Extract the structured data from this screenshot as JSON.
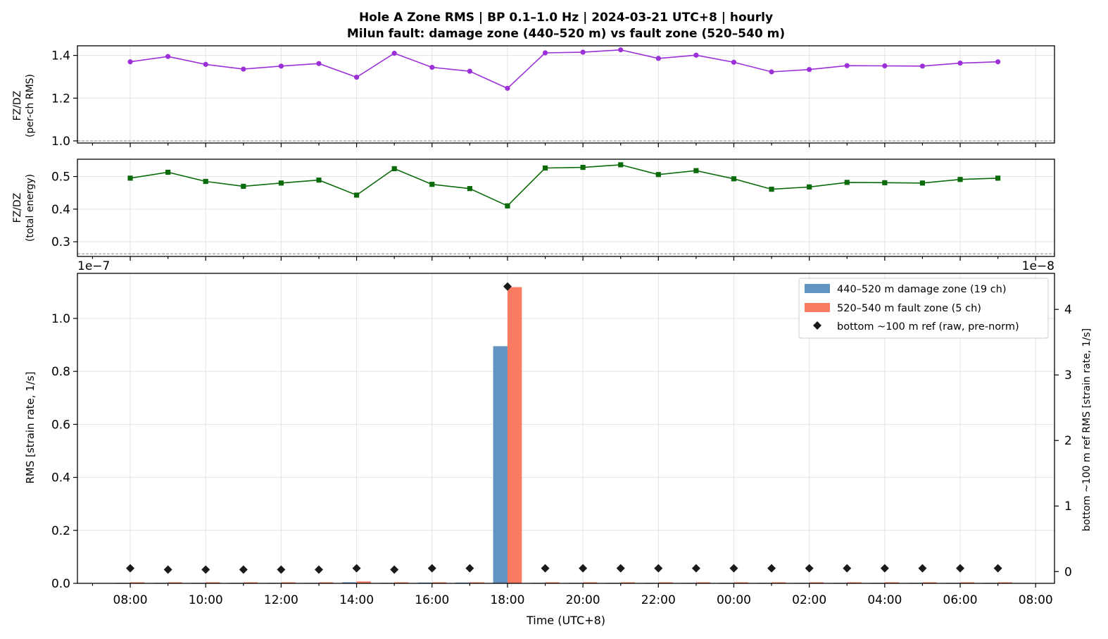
{
  "chart_data": [
    {
      "type": "line",
      "title": "Hole A Zone RMS  |  BP 0.1–1.0 Hz  |  2024-03-21 UTC+8  |  hourly",
      "subtitle": "Milun fault: damage zone (440–520 m) vs fault zone (520–540 m)",
      "ylabel": "FZ/DZ",
      "ylabel2": "(per-ch RMS)",
      "ylim": [
        0.99,
        1.445
      ],
      "yticks": [
        1.0,
        1.2,
        1.4
      ],
      "ytick_labels": [
        "1.0",
        "1.2",
        "1.4"
      ],
      "reference_line": 1.0,
      "color": "#9b30d9",
      "marker": "circle",
      "x_hours": [
        8,
        9,
        10,
        11,
        12,
        13,
        14,
        15,
        16,
        17,
        18,
        19,
        20,
        21,
        22,
        23,
        24,
        25,
        26,
        27,
        28,
        29,
        30,
        31
      ],
      "values": [
        1.37,
        1.395,
        1.358,
        1.336,
        1.35,
        1.362,
        1.298,
        1.41,
        1.344,
        1.326,
        1.246,
        1.412,
        1.415,
        1.426,
        1.386,
        1.401,
        1.368,
        1.323,
        1.334,
        1.352,
        1.351,
        1.35,
        1.364,
        1.37
      ]
    },
    {
      "type": "line",
      "ylabel": "FZ/DZ",
      "ylabel2": "(total energy)",
      "ylim": [
        0.255,
        0.553
      ],
      "yticks": [
        0.3,
        0.4,
        0.5
      ],
      "ytick_labels": [
        "0.3",
        "0.4",
        "0.5"
      ],
      "reference_line": 0.263,
      "color": "#0b6b0b",
      "marker": "square",
      "x_hours": [
        8,
        9,
        10,
        11,
        12,
        13,
        14,
        15,
        16,
        17,
        18,
        19,
        20,
        21,
        22,
        23,
        24,
        25,
        26,
        27,
        28,
        29,
        30,
        31
      ],
      "values": [
        0.495,
        0.513,
        0.485,
        0.47,
        0.48,
        0.489,
        0.443,
        0.524,
        0.476,
        0.463,
        0.41,
        0.526,
        0.528,
        0.536,
        0.506,
        0.518,
        0.493,
        0.461,
        0.468,
        0.482,
        0.481,
        0.48,
        0.491,
        0.495
      ]
    },
    {
      "type": "bar",
      "ylabel": "RMS  [strain rate, 1/s]",
      "ylabel_right": "bottom ~100 m ref RMS  [strain rate, 1/s]",
      "xlabel": "Time (UTC+8)",
      "ylim": [
        0,
        1.17
      ],
      "yticks": [
        0.0,
        0.2,
        0.4,
        0.6,
        0.8,
        1.0
      ],
      "ytick_labels": [
        "0.0",
        "0.2",
        "0.4",
        "0.6",
        "0.8",
        "1.0"
      ],
      "offset_left": "1e−7",
      "ylim_right": [
        -0.18,
        4.55
      ],
      "yticks_right": [
        0,
        1,
        2,
        3,
        4
      ],
      "ytick_labels_right": [
        "0",
        "1",
        "2",
        "3",
        "4"
      ],
      "offset_right": "1e−8",
      "xlim_hours": [
        6.6,
        32.5
      ],
      "xticks_hours": [
        8,
        10,
        12,
        14,
        16,
        18,
        20,
        22,
        24,
        26,
        28,
        30,
        32
      ],
      "xtick_labels": [
        "08:00",
        "10:00",
        "12:00",
        "14:00",
        "16:00",
        "18:00",
        "20:00",
        "22:00",
        "00:00",
        "02:00",
        "04:00",
        "06:00",
        "08:00"
      ],
      "x_hours": [
        8,
        9,
        10,
        11,
        12,
        13,
        14,
        15,
        16,
        17,
        18,
        19,
        20,
        21,
        22,
        23,
        24,
        25,
        26,
        27,
        28,
        29,
        30,
        31
      ],
      "series": [
        {
          "name": "440–520 m  damage zone (19 ch)",
          "color": "#6294c2",
          "axis": "left",
          "values": [
            0.002,
            0.002,
            0.002,
            0.002,
            0.002,
            0.002,
            0.004,
            0.002,
            0.003,
            0.003,
            0.895,
            0.002,
            0.002,
            0.002,
            0.002,
            0.002,
            0.002,
            0.002,
            0.002,
            0.002,
            0.002,
            0.002,
            0.002,
            0.002
          ]
        },
        {
          "name": "520–540 m  fault zone (5 ch)",
          "color": "#fa7a62",
          "axis": "left",
          "values": [
            0.004,
            0.004,
            0.004,
            0.004,
            0.004,
            0.004,
            0.007,
            0.004,
            0.004,
            0.004,
            1.118,
            0.004,
            0.004,
            0.004,
            0.004,
            0.004,
            0.004,
            0.004,
            0.004,
            0.004,
            0.004,
            0.004,
            0.004,
            0.004
          ]
        },
        {
          "name": "bottom ~100 m ref (raw, pre-norm)",
          "color": "#1a1a1a",
          "axis": "right",
          "marker": "diamond",
          "values": [
            0.05,
            0.03,
            0.03,
            0.03,
            0.03,
            0.03,
            0.05,
            0.03,
            0.05,
            0.05,
            4.35,
            0.05,
            0.05,
            0.05,
            0.05,
            0.05,
            0.05,
            0.05,
            0.05,
            0.05,
            0.05,
            0.05,
            0.05,
            0.05
          ]
        }
      ]
    }
  ]
}
